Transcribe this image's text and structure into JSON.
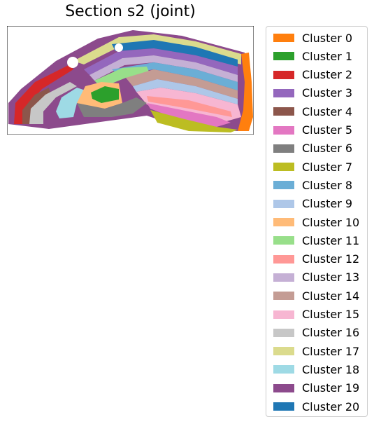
{
  "chart_data": {
    "type": "spatial-cluster-map",
    "title": "Section s2 (joint)",
    "xlabel": "",
    "ylabel": "",
    "axes_visible": false,
    "legend_placement": "outside-right",
    "clusters": [
      {
        "name": "Cluster 0",
        "color": "#ff7f0e"
      },
      {
        "name": "Cluster 1",
        "color": "#2ca02c"
      },
      {
        "name": "Cluster 2",
        "color": "#d62728"
      },
      {
        "name": "Cluster 3",
        "color": "#9467bd"
      },
      {
        "name": "Cluster 4",
        "color": "#8c564b"
      },
      {
        "name": "Cluster 5",
        "color": "#e377c2"
      },
      {
        "name": "Cluster 6",
        "color": "#7f7f7f"
      },
      {
        "name": "Cluster 7",
        "color": "#bcbd22"
      },
      {
        "name": "Cluster 8",
        "color": "#6baed6"
      },
      {
        "name": "Cluster 9",
        "color": "#aec7e8"
      },
      {
        "name": "Cluster 10",
        "color": "#ffbb78"
      },
      {
        "name": "Cluster 11",
        "color": "#98df8a"
      },
      {
        "name": "Cluster 12",
        "color": "#ff9896"
      },
      {
        "name": "Cluster 13",
        "color": "#c5b0d5"
      },
      {
        "name": "Cluster 14",
        "color": "#c49c94"
      },
      {
        "name": "Cluster 15",
        "color": "#f7b6d2"
      },
      {
        "name": "Cluster 16",
        "color": "#c7c7c7"
      },
      {
        "name": "Cluster 17",
        "color": "#dbdb8d"
      },
      {
        "name": "Cluster 18",
        "color": "#9edae5"
      },
      {
        "name": "Cluster 19",
        "color": "#8c4a8c"
      },
      {
        "name": "Cluster 20",
        "color": "#1f77b4"
      }
    ]
  }
}
